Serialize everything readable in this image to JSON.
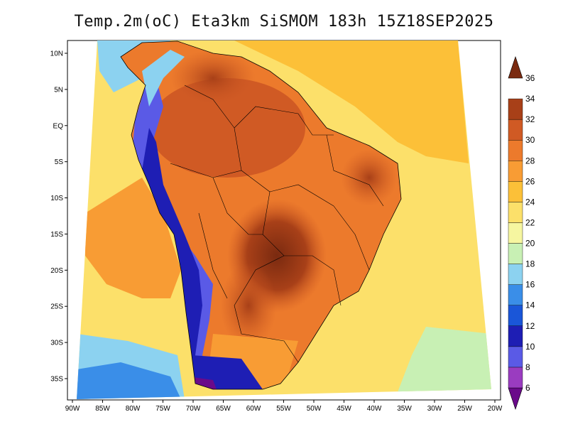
{
  "title": "Temp.2m(oC) Eta3km SiSMOM 183h 15Z18SEP2025",
  "map": {
    "lon_labels": [
      "90W",
      "85W",
      "80W",
      "75W",
      "70W",
      "65W",
      "60W",
      "55W",
      "50W",
      "45W",
      "40W",
      "35W",
      "30W",
      "25W",
      "20W"
    ],
    "lat_labels": [
      "10N",
      "5N",
      "EQ",
      "5S",
      "10S",
      "15S",
      "20S",
      "25S",
      "30S",
      "35S"
    ]
  },
  "colorbar": {
    "labels": [
      "6",
      "8",
      "10",
      "12",
      "14",
      "16",
      "18",
      "20",
      "22",
      "24",
      "26",
      "28",
      "30",
      "32",
      "34",
      "36"
    ],
    "colors": [
      "#6a0a8a",
      "#9a3cc0",
      "#5a5ae6",
      "#1e1eb4",
      "#1a56d8",
      "#3a8ee8",
      "#8cd2f0",
      "#c8f0b4",
      "#f6f6a0",
      "#fce06a",
      "#fcc038",
      "#f89c34",
      "#ec7a2c",
      "#d05a24",
      "#a84018",
      "#7a2a10"
    ]
  }
}
